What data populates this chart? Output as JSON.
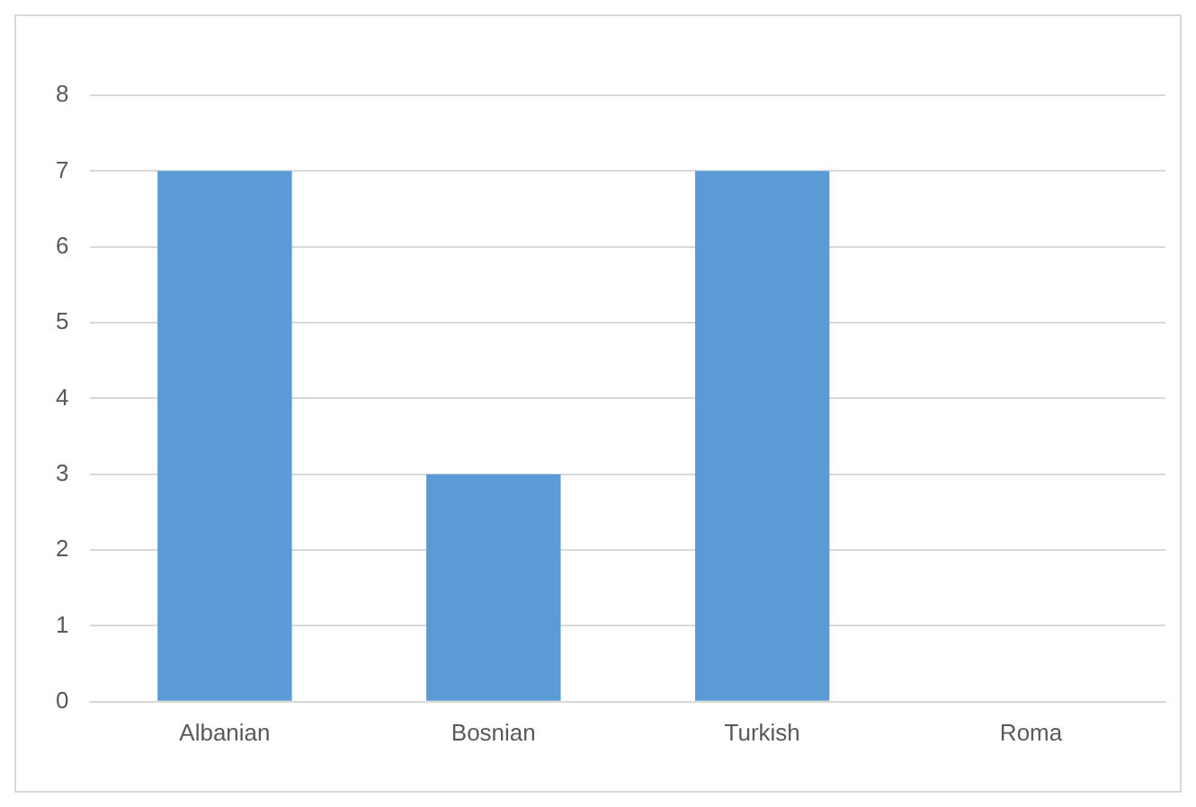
{
  "chart_data": {
    "type": "bar",
    "categories": [
      "Albanian",
      "Bosnian",
      "Turkish",
      "Roma"
    ],
    "values": [
      7,
      3,
      7,
      0
    ],
    "color": "#5b9bd5",
    "ylim": [
      0,
      8
    ],
    "yticks": [
      0,
      1,
      2,
      3,
      4,
      5,
      6,
      7,
      8
    ],
    "grid": "y",
    "legend": false
  }
}
